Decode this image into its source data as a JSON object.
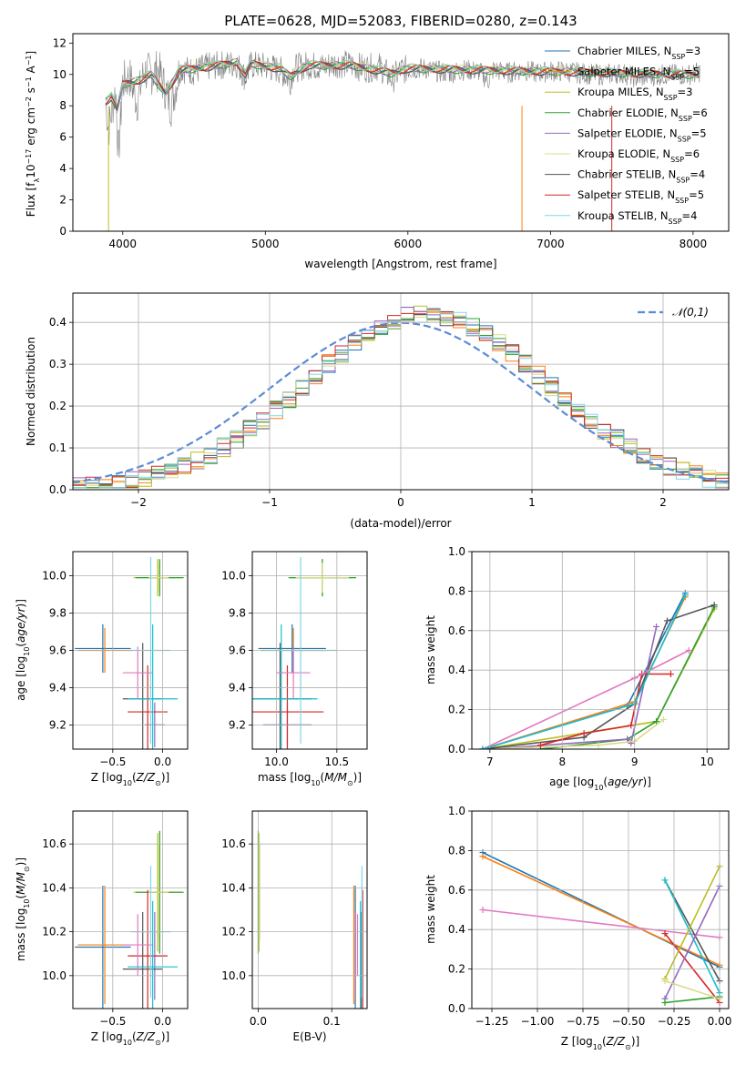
{
  "chart_data": [
    {
      "id": "spectrum",
      "type": "line",
      "title": "PLATE=0628, MJD=52083, FIBERID=0280, z=0.143",
      "xlabel": "wavelength [Angstrom, rest frame]",
      "ylabel": "Flux [f_λ10⁻¹⁷ erg cm⁻² s⁻¹ A⁻¹]",
      "xlim": [
        3650,
        8250
      ],
      "ylim": [
        0,
        12.6
      ],
      "xticks": [
        "4000",
        "5000",
        "6000",
        "7000",
        "8000"
      ],
      "yticks": [
        "0",
        "2",
        "4",
        "6",
        "8",
        "10",
        "12"
      ],
      "grid": false,
      "legend_position": "top-right",
      "series": [
        {
          "name": "Chabrier MILES, N_SSP=3",
          "color": "#1f77b4"
        },
        {
          "name": "Salpeter MILES, N_SSP=5",
          "color": "#ff7f0e"
        },
        {
          "name": "Kroupa MILES, N_SSP=3",
          "color": "#bcbd22"
        },
        {
          "name": "Chabrier ELODIE, N_SSP=6",
          "color": "#2ca02c"
        },
        {
          "name": "Salpeter ELODIE, N_SSP=5",
          "color": "#9467bd"
        },
        {
          "name": "Kroupa ELODIE, N_SSP=6",
          "color": "#dbdb8d"
        },
        {
          "name": "Chabrier STELIB, N_SSP=4",
          "color": "#555555"
        },
        {
          "name": "Salpeter STELIB, N_SSP=5",
          "color": "#d62728"
        },
        {
          "name": "Kroupa STELIB, N_SSP=4",
          "color": "#7fd7e8"
        }
      ],
      "legend": [
        {
          "prefix": "Chabrier MILES, N",
          "sub": "SSP",
          "suffix": "=3",
          "color": "#1f77b4"
        },
        {
          "prefix": "Salpeter MILES, N",
          "sub": "SSP",
          "suffix": "=5",
          "color": "#ff7f0e"
        },
        {
          "prefix": "Kroupa MILES, N",
          "sub": "SSP",
          "suffix": "=3",
          "color": "#bcbd22"
        },
        {
          "prefix": "Chabrier ELODIE, N",
          "sub": "SSP",
          "suffix": "=6",
          "color": "#2ca02c"
        },
        {
          "prefix": "Salpeter ELODIE, N",
          "sub": "SSP",
          "suffix": "=5",
          "color": "#9467bd"
        },
        {
          "prefix": "Kroupa ELODIE, N",
          "sub": "SSP",
          "suffix": "=6",
          "color": "#dbdb8d"
        },
        {
          "prefix": "Chabrier STELIB, N",
          "sub": "SSP",
          "suffix": "=4",
          "color": "#555555"
        },
        {
          "prefix": "Salpeter STELIB, N",
          "sub": "SSP",
          "suffix": "=5",
          "color": "#d62728"
        },
        {
          "prefix": "Kroupa STELIB, N",
          "sub": "SSP",
          "suffix": "=4",
          "color": "#7fd7e8"
        }
      ],
      "data_color": "#808080",
      "data_x": [
        3880,
        3900,
        3920,
        3950,
        3970,
        4000,
        4050,
        4100,
        4150,
        4200,
        4250,
        4300,
        4340,
        4400,
        4500,
        4600,
        4700,
        4800,
        4860,
        4900,
        5000,
        5100,
        5175,
        5200,
        5300,
        5400,
        5500,
        5600,
        5700,
        5800,
        5890,
        5950,
        6000,
        6100,
        6200,
        6300,
        6400,
        6500,
        6563,
        6600,
        6700,
        6800,
        6900,
        7000,
        7100,
        7200,
        7300,
        7400,
        7500,
        7600,
        7700,
        7800,
        7900,
        8000,
        8050
      ],
      "data_y": [
        8.2,
        6.5,
        7.5,
        9.0,
        4.8,
        9.5,
        9.8,
        8.2,
        10.2,
        10.0,
        10.3,
        9.0,
        8.0,
        10.4,
        10.2,
        10.5,
        10.6,
        10.7,
        9.8,
        10.6,
        10.5,
        10.3,
        9.6,
        10.4,
        10.6,
        10.5,
        10.7,
        10.6,
        10.4,
        10.5,
        9.7,
        10.3,
        10.3,
        10.4,
        10.2,
        10.1,
        10.3,
        10.2,
        9.6,
        10.3,
        10.1,
        10.3,
        10.1,
        10.2,
        10.2,
        10.1,
        10.0,
        10.0,
        10.1,
        9.8,
        9.9,
        10.0,
        10.0,
        10.0,
        10.2
      ],
      "model_x": [
        3880,
        3920,
        3960,
        4000,
        4100,
        4200,
        4300,
        4400,
        4600,
        4800,
        4860,
        4900,
        5100,
        5175,
        5300,
        5600,
        5890,
        6000,
        6500,
        7000,
        7500,
        8050
      ],
      "model_y": [
        8.3,
        8.6,
        7.8,
        9.4,
        9.6,
        10.0,
        8.8,
        10.3,
        10.5,
        10.8,
        10.0,
        10.7,
        10.4,
        9.9,
        10.6,
        10.6,
        10.1,
        10.4,
        10.3,
        10.2,
        10.1,
        10.0
      ],
      "spikes_down": [
        3900,
        6800,
        7430
      ]
    },
    {
      "id": "residuals",
      "type": "step",
      "xlabel": "(data-model)/error",
      "ylabel": "Normed distribution",
      "xlim": [
        -2.5,
        2.5
      ],
      "ylim": [
        0,
        0.47
      ],
      "xticks": [
        "-2",
        "-1",
        "0",
        "1",
        "2"
      ],
      "yticks": [
        "0.0",
        "0.1",
        "0.2",
        "0.3",
        "0.4"
      ],
      "grid": true,
      "legend_position": "top-right",
      "reference_curve": {
        "name": "𝒩(0,1)",
        "color": "#5b8bd6",
        "style": "dashed",
        "mean": 0,
        "sigma": 1
      },
      "bin_width": 0.1,
      "profile": {
        "mean": 0.2,
        "sigma": 0.92
      }
    },
    {
      "id": "age-vs-Z",
      "type": "scatter",
      "xlabel": "Z [log10(Z/Z⊙)]",
      "ylabel": "age  [log10(age/yr)]",
      "xlim": [
        -0.9,
        0.25
      ],
      "ylim": [
        9.07,
        10.13
      ],
      "xticks": [
        "-0.5",
        "0.0"
      ],
      "yticks": [
        "9.2",
        "9.4",
        "9.6",
        "9.8",
        "10.0"
      ]
    },
    {
      "id": "age-vs-mass",
      "type": "scatter",
      "xlabel": "mass [log10(M/M⊙)]",
      "ylabel": "",
      "xlim": [
        9.8,
        10.75
      ],
      "ylim": [
        9.07,
        10.13
      ],
      "xticks": [
        "10.0",
        "10.5"
      ],
      "yticks": [
        "9.2",
        "9.4",
        "9.6",
        "9.8",
        "10.0"
      ]
    },
    {
      "id": "massweight-vs-age",
      "type": "line",
      "xlabel": "age  [log10(age/yr)]",
      "ylabel": "mass weight",
      "xlim": [
        6.75,
        10.3
      ],
      "ylim": [
        0,
        1.0
      ],
      "xticks": [
        "7",
        "8",
        "9",
        "10"
      ],
      "yticks": [
        "0.0",
        "0.2",
        "0.4",
        "0.6",
        "0.8",
        "1.0"
      ],
      "series": [
        {
          "color": "#1f77b4",
          "x": [
            6.9,
            8.9,
            9.7
          ],
          "y": [
            0.0,
            0.22,
            0.79
          ]
        },
        {
          "color": "#ff7f0e",
          "x": [
            6.9,
            9.0,
            9.7
          ],
          "y": [
            0.0,
            0.24,
            0.77
          ]
        },
        {
          "color": "#bcbd22",
          "x": [
            6.9,
            9.3,
            10.1
          ],
          "y": [
            0.0,
            0.14,
            0.71
          ]
        },
        {
          "color": "#2ca02c",
          "x": [
            7.7,
            8.9,
            9.3,
            10.1
          ],
          "y": [
            0.0,
            0.05,
            0.14,
            0.72
          ]
        },
        {
          "color": "#9467bd",
          "x": [
            7.0,
            8.9,
            8.95,
            9.3
          ],
          "y": [
            0.0,
            0.05,
            0.03,
            0.62
          ]
        },
        {
          "color": "#dbdb8d",
          "x": [
            6.9,
            8.5,
            9.0,
            9.4
          ],
          "y": [
            0.0,
            0.02,
            0.04,
            0.15
          ]
        },
        {
          "color": "#555555",
          "x": [
            6.9,
            8.3,
            9.0,
            9.45,
            10.1
          ],
          "y": [
            0.0,
            0.06,
            0.23,
            0.65,
            0.73
          ]
        },
        {
          "color": "#d62728",
          "x": [
            7.7,
            8.3,
            8.95,
            9.1,
            9.5
          ],
          "y": [
            0.02,
            0.08,
            0.12,
            0.38,
            0.38
          ]
        },
        {
          "color": "#e377c2",
          "x": [
            6.9,
            9.0,
            9.75
          ],
          "y": [
            0.0,
            0.36,
            0.5
          ]
        },
        {
          "color": "#17becf",
          "x": [
            6.9,
            9.0,
            9.7
          ],
          "y": [
            0.0,
            0.23,
            0.78
          ]
        }
      ]
    },
    {
      "id": "mass-vs-Z",
      "type": "scatter",
      "xlabel": "Z [log10(Z/Z⊙)]",
      "ylabel": "mass [log10(M/M⊙)]",
      "xlim": [
        -0.9,
        0.25
      ],
      "ylim": [
        9.85,
        10.75
      ],
      "xticks": [
        "-0.5",
        "0.0"
      ],
      "yticks": [
        "10.0",
        "10.2",
        "10.4",
        "10.6"
      ]
    },
    {
      "id": "mass-vs-ebv",
      "type": "scatter",
      "xlabel": "E(B-V)",
      "ylabel": "",
      "xlim": [
        -0.008,
        0.148
      ],
      "ylim": [
        9.85,
        10.75
      ],
      "xticks": [
        "0.0",
        "0.1"
      ],
      "yticks": [
        "10.0",
        "10.2",
        "10.4",
        "10.6"
      ]
    },
    {
      "id": "massweight-vs-Z",
      "type": "line",
      "xlabel": "Z [log10(Z/Z⊙)]",
      "ylabel": "mass weight",
      "xlim": [
        -1.36,
        0.05
      ],
      "ylim": [
        0,
        1.0
      ],
      "xticks": [
        "-1.25",
        "-1.00",
        "-0.75",
        "-0.50",
        "-0.25",
        "0.00"
      ],
      "yticks": [
        "0.0",
        "0.2",
        "0.4",
        "0.6",
        "0.8",
        "1.0"
      ],
      "series": [
        {
          "color": "#1f77b4",
          "x": [
            -1.3,
            0.0
          ],
          "y": [
            0.79,
            0.21
          ]
        },
        {
          "color": "#ff7f0e",
          "x": [
            -1.3,
            0.0
          ],
          "y": [
            0.77,
            0.22
          ]
        },
        {
          "color": "#e377c2",
          "x": [
            -1.3,
            0.0
          ],
          "y": [
            0.5,
            0.36
          ]
        },
        {
          "color": "#555555",
          "x": [
            -0.3,
            0.0
          ],
          "y": [
            0.65,
            0.14
          ]
        },
        {
          "color": "#17becf",
          "x": [
            -0.3,
            0.0
          ],
          "y": [
            0.65,
            0.08
          ]
        },
        {
          "color": "#d62728",
          "x": [
            -0.3,
            0.0
          ],
          "y": [
            0.38,
            0.03
          ]
        },
        {
          "color": "#9467bd",
          "x": [
            -0.3,
            0.0
          ],
          "y": [
            0.05,
            0.62
          ]
        },
        {
          "color": "#2ca02c",
          "x": [
            -0.3,
            0.0
          ],
          "y": [
            0.03,
            0.06
          ]
        },
        {
          "color": "#bcbd22",
          "x": [
            -0.3,
            0.0
          ],
          "y": [
            0.15,
            0.72
          ]
        },
        {
          "color": "#dbdb8d",
          "x": [
            -0.3,
            0.0
          ],
          "y": [
            0.14,
            0.05
          ]
        }
      ]
    }
  ],
  "crosses": [
    {
      "color": "#1f77b4",
      "Z": -0.6,
      "Zerr": 0.28,
      "age": 9.61,
      "ageerr": 0.13,
      "mass": 10.13,
      "masserr": 0.28,
      "ebv": 0.132
    },
    {
      "color": "#ff7f0e",
      "Z": -0.58,
      "Zerr": 0.27,
      "age": 9.6,
      "ageerr": 0.12,
      "mass": 10.14,
      "masserr": 0.27,
      "ebv": 0.13
    },
    {
      "color": "#bcbd22",
      "Z": -0.05,
      "Zerr": 0.24,
      "age": 9.99,
      "ageerr": 0.1,
      "mass": 10.38,
      "masserr": 0.27,
      "ebv": 0.001
    },
    {
      "color": "#2ca02c",
      "Z": -0.03,
      "Zerr": 0.24,
      "age": 9.99,
      "ageerr": 0.1,
      "mass": 10.38,
      "masserr": 0.28,
      "ebv": 0.0
    },
    {
      "color": "#9467bd",
      "Z": -0.08,
      "Zerr": 0.1,
      "age": 9.2,
      "ageerr": 0.12,
      "mass": 10.09,
      "masserr": 0.2,
      "ebv": 0.132
    },
    {
      "color": "#dbdb8d",
      "Z": -0.04,
      "Zerr": 0.1,
      "age": 9.99,
      "ageerr": 0.08,
      "mass": 10.38,
      "masserr": 0.22,
      "ebv": 0.002
    },
    {
      "color": "#555555",
      "Z": -0.2,
      "Zerr": 0.2,
      "age": 9.34,
      "ageerr": 0.3,
      "mass": 10.03,
      "masserr": 0.26,
      "ebv": 0.14
    },
    {
      "color": "#d62728",
      "Z": -0.15,
      "Zerr": 0.2,
      "age": 9.27,
      "ageerr": 0.25,
      "mass": 10.09,
      "masserr": 0.3,
      "ebv": 0.142
    },
    {
      "color": "#e377c2",
      "Z": -0.25,
      "Zerr": 0.15,
      "age": 9.48,
      "ageerr": 0.14,
      "mass": 10.14,
      "masserr": 0.14,
      "ebv": 0.135
    },
    {
      "color": "#17becf",
      "Z": -0.1,
      "Zerr": 0.25,
      "age": 9.34,
      "ageerr": 0.4,
      "mass": 10.04,
      "masserr": 0.3,
      "ebv": 0.139
    },
    {
      "color": "#7fd7e8",
      "Z": -0.12,
      "Zerr": 0.2,
      "age": 9.6,
      "ageerr": 0.5,
      "mass": 10.2,
      "masserr": 0.3,
      "ebv": 0.141
    }
  ]
}
